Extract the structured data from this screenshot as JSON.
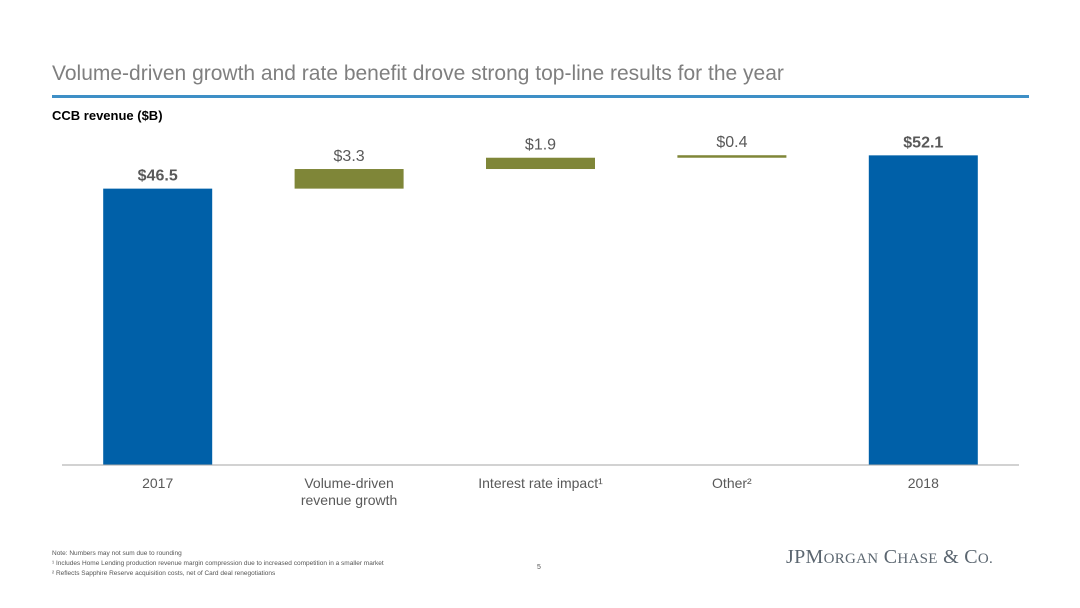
{
  "header": {
    "title": "Volume-driven growth and rate benefit drove strong top-line results for the year",
    "subtitle": "CCB revenue ($B)"
  },
  "colors": {
    "total_bar": "#0060a8",
    "change_bar": "#7f8638",
    "title_rule": "#3e8fc6",
    "axis": "#a6a6a6"
  },
  "chart_data": {
    "type": "bar",
    "subtype": "waterfall",
    "categories": [
      "2017",
      "Volume-driven revenue growth",
      "Interest rate impact¹",
      "Other²",
      "2018"
    ],
    "category_label_lines": [
      [
        "2017"
      ],
      [
        "Volume-driven",
        "revenue growth"
      ],
      [
        "Interest rate impact¹"
      ],
      [
        "Other²"
      ],
      [
        "2018"
      ]
    ],
    "values": [
      46.5,
      3.3,
      1.9,
      0.4,
      52.1
    ],
    "kinds": [
      "total",
      "delta",
      "delta",
      "delta",
      "total"
    ],
    "data_labels": [
      "$46.5",
      "$3.3",
      "$1.9",
      "$0.4",
      "$52.1"
    ],
    "label_bold": [
      true,
      false,
      false,
      false,
      true
    ],
    "ylim": [
      0,
      53
    ],
    "xlabel": "",
    "ylabel": "",
    "grid": false,
    "legend": "none"
  },
  "footer": {
    "notes": [
      "Note: Numbers may not sum due to rounding",
      "¹ Includes Home Lending production revenue margin compression due to increased competition in a smaller market",
      "² Reflects Sapphire Reserve acquisition costs, net of Card deal renegotiations"
    ],
    "page_number": "5",
    "logo": "JPMorgan Chase & Co."
  }
}
